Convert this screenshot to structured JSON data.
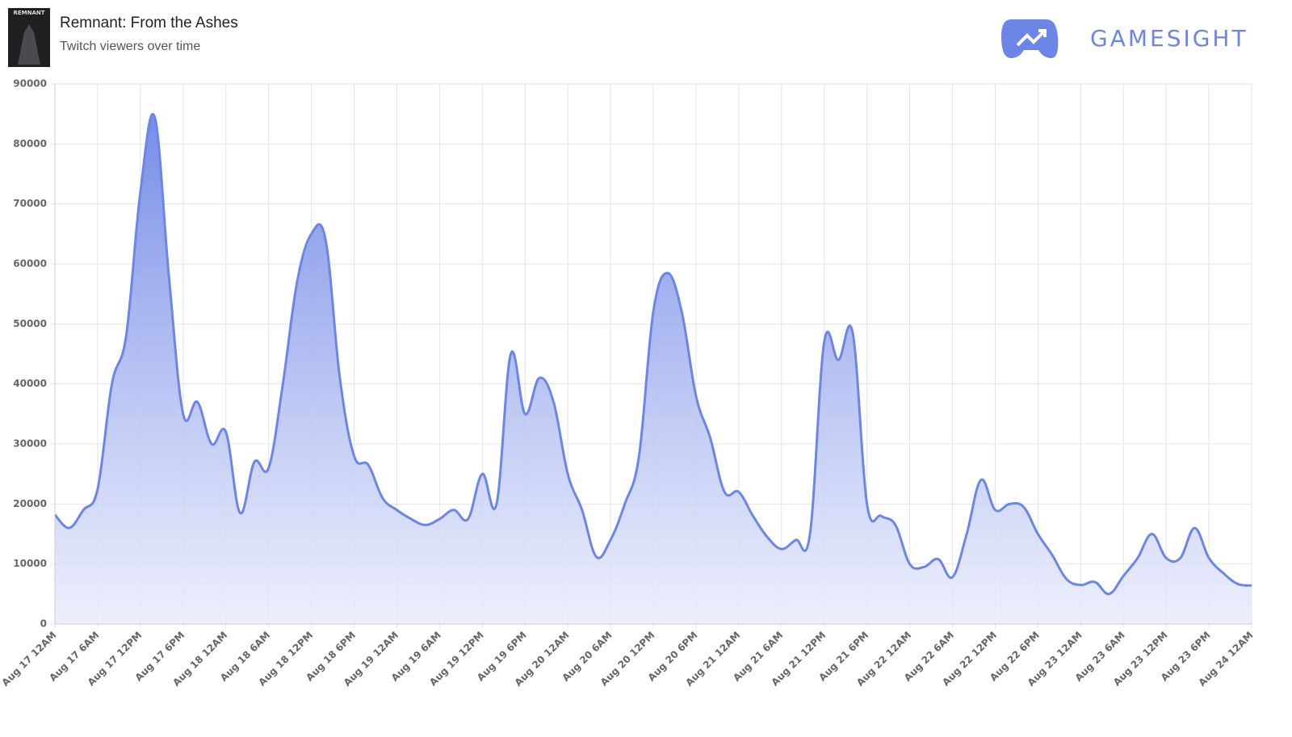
{
  "header": {
    "thumbnail_text": "REMNANT",
    "title": "Remnant: From the Ashes",
    "subtitle": "Twitch viewers over time",
    "brand": "GAMESIGHT"
  },
  "chart_data": {
    "type": "area",
    "color": "#6b86e6",
    "grid": true,
    "categories": [
      "Aug 17 12AM",
      null,
      null,
      "Aug 17 6AM",
      null,
      null,
      "Aug 17 12PM",
      null,
      null,
      "Aug 17 6PM",
      null,
      null,
      "Aug 18 12AM",
      null,
      null,
      "Aug 18 6AM",
      null,
      null,
      "Aug 18 12PM",
      null,
      null,
      "Aug 18 6PM",
      null,
      null,
      "Aug 19 12AM",
      null,
      null,
      "Aug 19 6AM",
      null,
      null,
      "Aug 19 12PM",
      null,
      null,
      "Aug 19 6PM",
      null,
      null,
      "Aug 20 12AM",
      null,
      null,
      "Aug 20 6AM",
      null,
      null,
      "Aug 20 12PM",
      null,
      null,
      "Aug 20 6PM",
      null,
      null,
      "Aug 21 12AM",
      null,
      null,
      "Aug 21 6AM",
      null,
      null,
      "Aug 21 12PM",
      null,
      null,
      "Aug 21 6PM",
      null,
      null,
      "Aug 22 12AM",
      null,
      null,
      "Aug 22 6AM",
      null,
      null,
      "Aug 22 12PM",
      null,
      null,
      "Aug 22 6PM",
      null,
      null,
      "Aug 23 12AM",
      null,
      null,
      "Aug 23 6AM",
      null,
      null,
      "Aug 23 12PM",
      null,
      null,
      "Aug 23 6PM",
      null,
      null,
      "Aug 24 12AM"
    ],
    "values": [
      18200,
      16000,
      19000,
      22500,
      40000,
      48000,
      72000,
      84500,
      58000,
      35000,
      37000,
      30000,
      32000,
      18500,
      27000,
      26000,
      40000,
      57000,
      65000,
      64000,
      41000,
      28000,
      26500,
      21000,
      19000,
      17500,
      16500,
      17500,
      19000,
      17500,
      25000,
      20000,
      45000,
      35000,
      41000,
      37000,
      25000,
      19000,
      11200,
      14000,
      20000,
      28000,
      52000,
      58500,
      52000,
      38000,
      31000,
      22000,
      22000,
      18000,
      14500,
      12500,
      14000,
      15000,
      47000,
      44000,
      48500,
      20000,
      18000,
      16500,
      10000,
      9500,
      10800,
      7800,
      15000,
      24000,
      19000,
      20000,
      19500,
      15000,
      11500,
      7500,
      6500,
      7000,
      5000,
      8000,
      11000,
      15000,
      11000,
      11000,
      16000,
      11000,
      8500,
      6700,
      6400
    ],
    "ylim": [
      0,
      90000
    ],
    "yticks": [
      0,
      10000,
      20000,
      30000,
      40000,
      50000,
      60000,
      70000,
      80000,
      90000
    ]
  }
}
